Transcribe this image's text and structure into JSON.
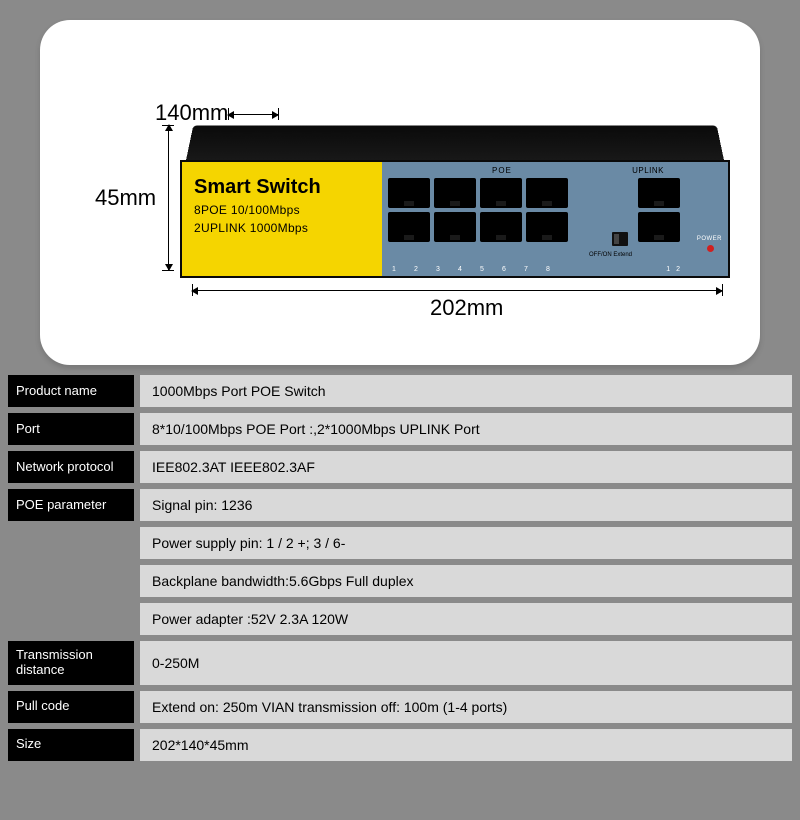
{
  "diagram": {
    "depth_label": "140mm",
    "height_label": "45mm",
    "width_label": "202mm",
    "device": {
      "title": "Smart Switch",
      "line1": "8POE 10/100Mbps",
      "line2": "2UPLINK 1000Mbps",
      "poe_label": "POE",
      "uplink_label": "UPLINK",
      "dip_label": "OFF/ON\nExtend",
      "power_label": "POWER",
      "port_numbers": [
        "1",
        "2",
        "3",
        "4",
        "5",
        "6",
        "7",
        "8"
      ],
      "uplink_numbers": [
        "1",
        "2"
      ]
    },
    "colors": {
      "panel_bg": "#ffffff",
      "body_bg": "#8a8a8a",
      "device_face": "#6a8aa5",
      "yellow": "#f5d500",
      "black": "#000000",
      "led": "#d02020"
    }
  },
  "specs": [
    {
      "label": "Product name",
      "value": "1000Mbps Port POE Switch"
    },
    {
      "label": "Port",
      "value": "8*10/100Mbps POE Port :,2*1000Mbps UPLINK Port"
    },
    {
      "label": "Network protocol",
      "value": "IEE802.3AT IEEE802.3AF"
    },
    {
      "label": "POE parameter",
      "value": "Signal pin: 1236"
    },
    {
      "label": "",
      "value": "Power supply pin: 1 / 2 +; 3 / 6-"
    },
    {
      "label": "",
      "value": "Backplane bandwidth:5.6Gbps Full duplex"
    },
    {
      "label": "",
      "value": "Power adapter :52V 2.3A 120W"
    },
    {
      "label": "Transmission distance",
      "value": "0-250M"
    },
    {
      "label": "Pull code",
      "value": "Extend on: 250m VIAN  transmission off: 100m (1-4 ports)"
    },
    {
      "label": "Size",
      "value": "202*140*45mm"
    }
  ]
}
